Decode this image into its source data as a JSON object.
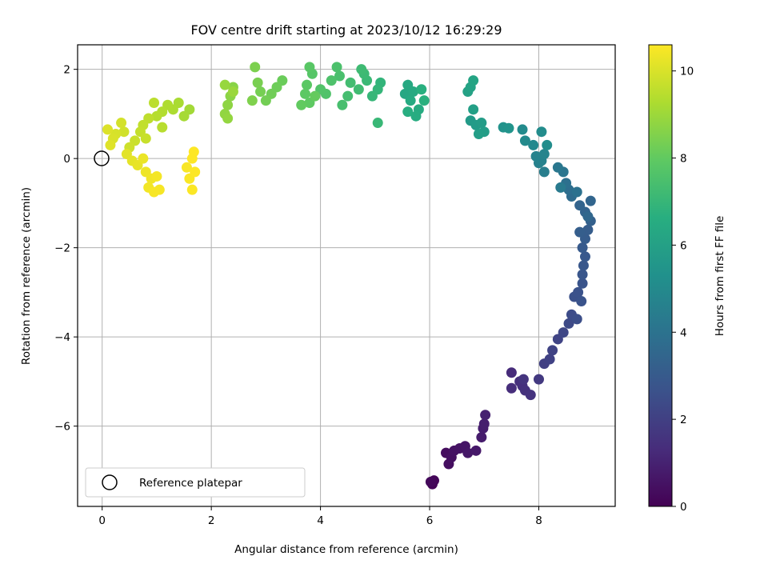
{
  "chart_data": {
    "type": "scatter",
    "title": "FOV centre drift starting at 2023/10/12 16:29:29",
    "xlabel": "Angular distance from reference (arcmin)",
    "ylabel": "Rotation from reference (arcmin)",
    "xlim": [
      -0.45,
      9.4
    ],
    "ylim": [
      -7.8,
      2.55
    ],
    "xticks": [
      0,
      2,
      4,
      6,
      8
    ],
    "yticks": [
      2,
      0,
      -2,
      -4,
      -6
    ],
    "grid": true,
    "legend": {
      "position": "lower-left",
      "entries": [
        "Reference platepar"
      ]
    },
    "reference_point": {
      "name": "Reference platepar",
      "x": 0,
      "y": 0,
      "marker": "open-circle"
    },
    "colorbar": {
      "label": "Hours from first FF file",
      "colormap": "viridis",
      "range": [
        0,
        10.6
      ],
      "ticks": [
        0,
        2,
        4,
        6,
        8,
        10
      ]
    },
    "series": [
      {
        "colormap_value": "hours",
        "points": [
          [
            6.05,
            -7.3,
            0.1
          ],
          [
            6.08,
            -7.22,
            0.15
          ],
          [
            6.02,
            -7.25,
            0.2
          ],
          [
            6.3,
            -6.6,
            0.35
          ],
          [
            6.35,
            -6.85,
            0.4
          ],
          [
            6.4,
            -6.7,
            0.45
          ],
          [
            6.45,
            -6.55,
            0.5
          ],
          [
            6.55,
            -6.5,
            0.55
          ],
          [
            6.65,
            -6.45,
            0.6
          ],
          [
            6.7,
            -6.6,
            0.65
          ],
          [
            6.85,
            -6.55,
            0.7
          ],
          [
            6.95,
            -6.25,
            0.8
          ],
          [
            6.98,
            -6.05,
            0.85
          ],
          [
            7.0,
            -5.95,
            0.9
          ],
          [
            7.02,
            -5.75,
            0.95
          ],
          [
            7.5,
            -4.8,
            1.3
          ],
          [
            7.5,
            -5.15,
            1.35
          ],
          [
            7.65,
            -5.0,
            1.4
          ],
          [
            7.7,
            -5.1,
            1.45
          ],
          [
            7.75,
            -5.2,
            1.5
          ],
          [
            7.85,
            -5.3,
            1.55
          ],
          [
            7.72,
            -4.95,
            1.6
          ],
          [
            8.0,
            -4.95,
            1.75
          ],
          [
            8.1,
            -4.6,
            2.0
          ],
          [
            8.2,
            -4.5,
            2.05
          ],
          [
            8.25,
            -4.3,
            2.1
          ],
          [
            8.35,
            -4.05,
            2.15
          ],
          [
            8.45,
            -3.9,
            2.25
          ],
          [
            8.55,
            -3.7,
            2.35
          ],
          [
            8.6,
            -3.5,
            2.45
          ],
          [
            8.7,
            -3.6,
            2.5
          ],
          [
            8.65,
            -3.1,
            2.6
          ],
          [
            8.72,
            -3.0,
            2.65
          ],
          [
            8.78,
            -3.2,
            2.7
          ],
          [
            8.8,
            -2.8,
            2.75
          ],
          [
            8.8,
            -2.6,
            2.8
          ],
          [
            8.82,
            -2.4,
            2.85
          ],
          [
            8.85,
            -2.2,
            2.9
          ],
          [
            8.8,
            -2.0,
            3.0
          ],
          [
            8.85,
            -1.8,
            3.05
          ],
          [
            8.9,
            -1.6,
            3.1
          ],
          [
            8.75,
            -1.65,
            3.15
          ],
          [
            8.95,
            -1.4,
            3.25
          ],
          [
            8.85,
            -1.2,
            3.35
          ],
          [
            8.75,
            -1.05,
            3.4
          ],
          [
            8.95,
            -0.95,
            3.45
          ],
          [
            8.9,
            -1.3,
            3.5
          ],
          [
            8.6,
            -0.85,
            3.7
          ],
          [
            8.55,
            -0.7,
            3.8
          ],
          [
            8.5,
            -0.55,
            3.9
          ],
          [
            8.7,
            -0.75,
            3.95
          ],
          [
            8.45,
            -0.3,
            4.1
          ],
          [
            8.35,
            -0.2,
            4.2
          ],
          [
            8.4,
            -0.65,
            4.3
          ],
          [
            8.1,
            -0.3,
            4.5
          ],
          [
            8.0,
            -0.1,
            4.6
          ],
          [
            8.05,
            -0.05,
            4.65
          ],
          [
            7.95,
            0.05,
            4.7
          ],
          [
            8.1,
            0.1,
            4.75
          ],
          [
            7.9,
            0.3,
            4.9
          ],
          [
            7.75,
            0.4,
            5.0
          ],
          [
            7.7,
            0.65,
            5.05
          ],
          [
            8.05,
            0.6,
            5.1
          ],
          [
            8.15,
            0.3,
            5.15
          ],
          [
            7.35,
            0.7,
            5.4
          ],
          [
            7.45,
            0.68,
            5.45
          ],
          [
            6.75,
            0.85,
            5.7
          ],
          [
            6.85,
            0.75,
            5.75
          ],
          [
            6.95,
            0.8,
            5.8
          ],
          [
            7.0,
            0.6,
            5.85
          ],
          [
            6.9,
            0.55,
            5.9
          ],
          [
            6.8,
            1.1,
            5.95
          ],
          [
            6.7,
            1.5,
            6.05
          ],
          [
            6.75,
            1.6,
            6.1
          ],
          [
            6.8,
            1.75,
            6.15
          ],
          [
            5.55,
            1.45,
            6.3
          ],
          [
            5.6,
            1.65,
            6.35
          ],
          [
            5.7,
            1.5,
            6.4
          ],
          [
            5.65,
            1.3,
            6.45
          ],
          [
            5.8,
            1.1,
            6.5
          ],
          [
            5.75,
            0.95,
            6.55
          ],
          [
            5.6,
            1.05,
            6.6
          ],
          [
            5.85,
            1.55,
            6.65
          ],
          [
            5.9,
            1.3,
            6.7
          ],
          [
            5.1,
            1.7,
            6.9
          ],
          [
            5.05,
            1.55,
            6.95
          ],
          [
            4.95,
            1.4,
            7.0
          ],
          [
            5.05,
            0.8,
            7.05
          ],
          [
            4.85,
            1.75,
            7.1
          ],
          [
            4.8,
            1.9,
            7.15
          ],
          [
            4.75,
            2.0,
            7.2
          ],
          [
            4.7,
            1.55,
            7.25
          ],
          [
            4.55,
            1.7,
            7.3
          ],
          [
            4.5,
            1.4,
            7.35
          ],
          [
            4.4,
            1.2,
            7.4
          ],
          [
            4.35,
            1.85,
            7.45
          ],
          [
            4.3,
            2.05,
            7.5
          ],
          [
            4.2,
            1.75,
            7.55
          ],
          [
            4.1,
            1.45,
            7.6
          ],
          [
            4.0,
            1.55,
            7.65
          ],
          [
            3.85,
            1.9,
            7.75
          ],
          [
            3.8,
            2.05,
            7.8
          ],
          [
            3.75,
            1.65,
            7.85
          ],
          [
            3.72,
            1.45,
            7.9
          ],
          [
            3.8,
            1.25,
            7.95
          ],
          [
            3.65,
            1.2,
            8.0
          ],
          [
            3.9,
            1.4,
            8.05
          ],
          [
            3.3,
            1.75,
            8.15
          ],
          [
            3.2,
            1.6,
            8.2
          ],
          [
            3.1,
            1.45,
            8.25
          ],
          [
            3.0,
            1.3,
            8.3
          ],
          [
            2.9,
            1.5,
            8.35
          ],
          [
            2.85,
            1.7,
            8.4
          ],
          [
            2.8,
            2.05,
            8.45
          ],
          [
            2.75,
            1.3,
            8.5
          ],
          [
            2.4,
            1.6,
            8.65
          ],
          [
            2.35,
            1.4,
            8.7
          ],
          [
            2.3,
            1.2,
            8.75
          ],
          [
            2.25,
            1.0,
            8.8
          ],
          [
            2.3,
            0.9,
            8.85
          ],
          [
            2.25,
            1.65,
            8.9
          ],
          [
            2.4,
            1.5,
            8.95
          ],
          [
            1.6,
            1.1,
            9.1
          ],
          [
            1.5,
            0.95,
            9.15
          ],
          [
            1.4,
            1.25,
            9.2
          ],
          [
            1.3,
            1.1,
            9.25
          ],
          [
            1.2,
            1.2,
            9.3
          ],
          [
            1.1,
            1.05,
            9.35
          ],
          [
            1.0,
            0.95,
            9.4
          ],
          [
            1.1,
            0.7,
            9.45
          ],
          [
            0.95,
            1.25,
            9.5
          ],
          [
            0.85,
            0.9,
            9.55
          ],
          [
            0.75,
            0.75,
            9.6
          ],
          [
            0.7,
            0.6,
            9.65
          ],
          [
            0.8,
            0.45,
            9.7
          ],
          [
            0.6,
            0.4,
            9.75
          ],
          [
            0.5,
            0.25,
            9.8
          ],
          [
            0.4,
            0.6,
            9.85
          ],
          [
            0.35,
            0.8,
            9.9
          ],
          [
            0.25,
            0.55,
            9.95
          ],
          [
            0.2,
            0.45,
            10.0
          ],
          [
            0.1,
            0.65,
            10.05
          ],
          [
            0.15,
            0.3,
            10.1
          ],
          [
            0.45,
            0.1,
            10.15
          ],
          [
            0.55,
            -0.05,
            10.2
          ],
          [
            0.65,
            -0.15,
            10.25
          ],
          [
            0.75,
            0.0,
            10.3
          ],
          [
            0.8,
            -0.3,
            10.35
          ],
          [
            0.9,
            -0.45,
            10.4
          ],
          [
            0.85,
            -0.65,
            10.42
          ],
          [
            1.0,
            -0.4,
            10.45
          ],
          [
            1.05,
            -0.7,
            10.48
          ],
          [
            0.95,
            -0.75,
            10.5
          ],
          [
            1.55,
            -0.2,
            10.52
          ],
          [
            1.6,
            -0.45,
            10.54
          ],
          [
            1.65,
            -0.7,
            10.56
          ],
          [
            1.7,
            -0.3,
            10.58
          ],
          [
            1.65,
            0.0,
            10.6
          ],
          [
            1.68,
            0.15,
            10.6
          ]
        ]
      }
    ]
  }
}
